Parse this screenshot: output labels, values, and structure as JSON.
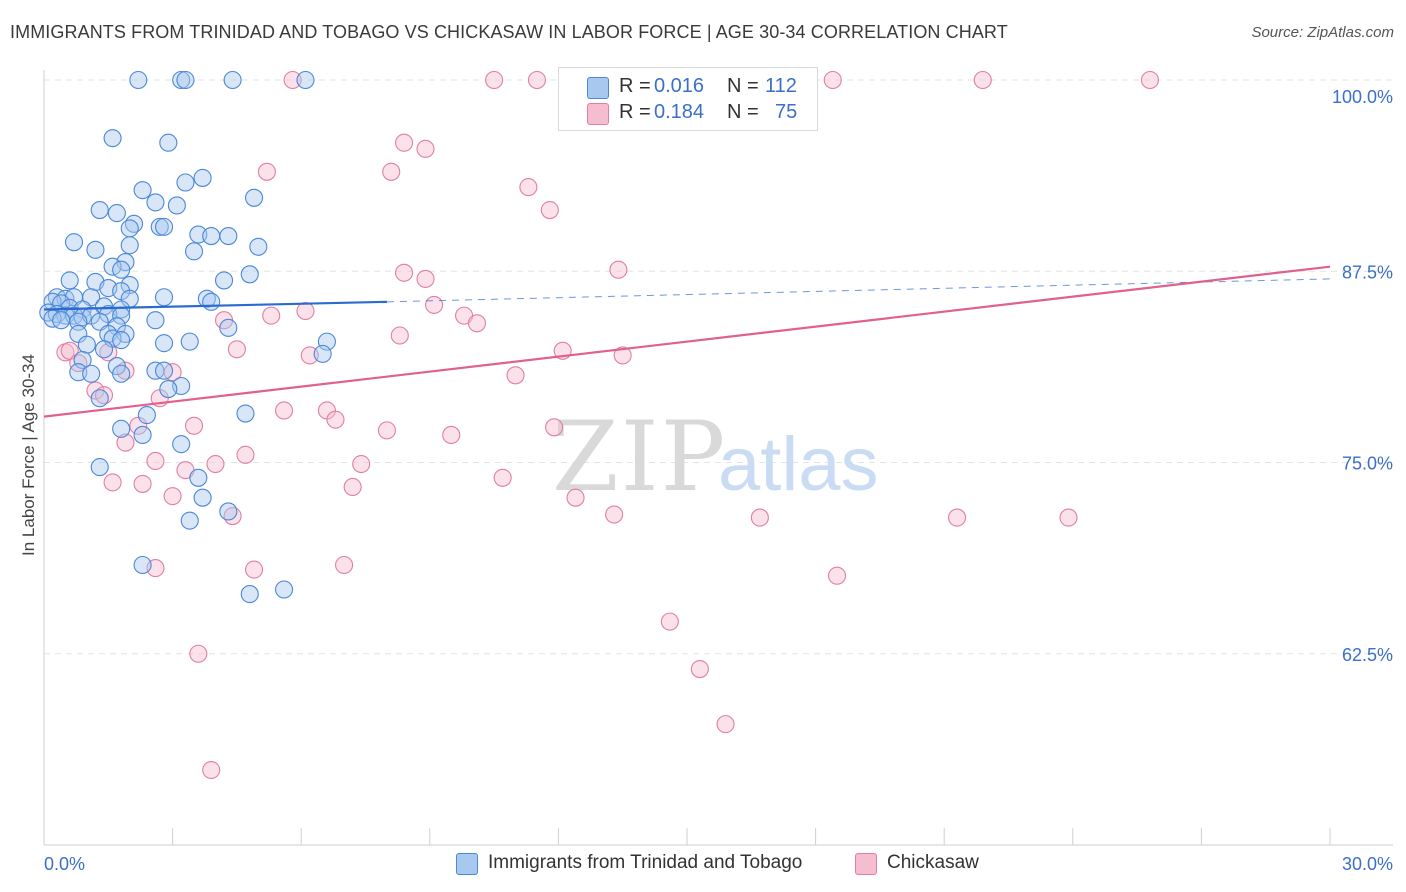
{
  "title": "IMMIGRANTS FROM TRINIDAD AND TOBAGO VS CHICKASAW IN LABOR FORCE | AGE 30-34 CORRELATION CHART",
  "source": "Source: ZipAtlas.com",
  "watermark": {
    "zip": "ZIP",
    "atlas": "atlas"
  },
  "legend_box": {
    "rows": [
      {
        "r_label": "R =",
        "r_value": "0.016",
        "n_label": "N =",
        "n_value": "112"
      },
      {
        "r_label": "R =",
        "r_value": "0.184",
        "n_label": "N =",
        "n_value": "75"
      }
    ]
  },
  "bottom_legend": {
    "series1": "Immigrants from Trinidad and Tobago",
    "series2": "Chickasaw"
  },
  "colors": {
    "blue_fill": "#a9c8f0",
    "blue_stroke": "#4a88d8",
    "blue_line": "#2b6bd0",
    "pink_fill": "#f6bcd0",
    "pink_stroke": "#e07fa3",
    "pink_line": "#e0608e",
    "tick_label": "#3b6fc9"
  },
  "chart_data": {
    "type": "scatter",
    "title": "IMMIGRANTS FROM TRINIDAD AND TOBAGO VS CHICKASAW IN LABOR FORCE | AGE 30-34 CORRELATION CHART",
    "xlabel": "",
    "ylabel": "In Labor Force | Age 30-34",
    "xlim": [
      0,
      30
    ],
    "ylim": [
      50,
      100
    ],
    "x_tick_labels": [
      "0.0%",
      "30.0%"
    ],
    "y_ticks": [
      62.5,
      75.0,
      87.5,
      100.0
    ],
    "y_tick_labels": [
      "62.5%",
      "75.0%",
      "87.5%",
      "100.0%"
    ],
    "series": [
      {
        "name": "Immigrants from Trinidad and Tobago",
        "R": 0.016,
        "N": 112,
        "trend": {
          "x": [
            0,
            8
          ],
          "y": [
            85.0,
            85.5
          ],
          "dashed_to": [
            30,
            87.0
          ]
        },
        "points": [
          [
            2.2,
            100
          ],
          [
            3.2,
            100
          ],
          [
            3.3,
            100
          ],
          [
            4.4,
            100
          ],
          [
            6.1,
            100
          ],
          [
            1.6,
            96.2
          ],
          [
            2.9,
            95.9
          ],
          [
            3.3,
            93.3
          ],
          [
            3.7,
            93.6
          ],
          [
            2.3,
            92.8
          ],
          [
            4.9,
            92.3
          ],
          [
            2.6,
            92.0
          ],
          [
            3.1,
            91.8
          ],
          [
            1.3,
            91.5
          ],
          [
            1.7,
            91.3
          ],
          [
            2.1,
            90.6
          ],
          [
            2.0,
            90.3
          ],
          [
            2.7,
            90.4
          ],
          [
            2.8,
            90.4
          ],
          [
            3.6,
            89.9
          ],
          [
            3.9,
            89.8
          ],
          [
            4.3,
            89.8
          ],
          [
            0.7,
            89.4
          ],
          [
            2.0,
            89.2
          ],
          [
            5.0,
            89.1
          ],
          [
            1.2,
            88.9
          ],
          [
            3.5,
            88.8
          ],
          [
            1.9,
            88.1
          ],
          [
            1.6,
            87.8
          ],
          [
            1.8,
            87.6
          ],
          [
            4.8,
            87.3
          ],
          [
            0.6,
            86.9
          ],
          [
            1.2,
            86.8
          ],
          [
            2.0,
            86.6
          ],
          [
            4.2,
            86.9
          ],
          [
            1.5,
            86.4
          ],
          [
            1.8,
            86.2
          ],
          [
            0.3,
            85.8
          ],
          [
            0.5,
            85.7
          ],
          [
            0.7,
            85.8
          ],
          [
            1.1,
            85.8
          ],
          [
            2.0,
            85.7
          ],
          [
            2.8,
            85.8
          ],
          [
            3.8,
            85.7
          ],
          [
            3.9,
            85.5
          ],
          [
            0.2,
            85.5
          ],
          [
            0.4,
            85.4
          ],
          [
            0.6,
            85.1
          ],
          [
            0.9,
            85.0
          ],
          [
            1.4,
            85.2
          ],
          [
            1.8,
            85.0
          ],
          [
            0.1,
            84.8
          ],
          [
            0.3,
            84.7
          ],
          [
            0.5,
            84.6
          ],
          [
            0.7,
            84.6
          ],
          [
            0.9,
            84.5
          ],
          [
            1.1,
            84.6
          ],
          [
            1.5,
            84.7
          ],
          [
            1.8,
            84.6
          ],
          [
            0.2,
            84.4
          ],
          [
            0.4,
            84.3
          ],
          [
            0.8,
            84.2
          ],
          [
            1.3,
            84.2
          ],
          [
            2.6,
            84.3
          ],
          [
            1.7,
            83.9
          ],
          [
            4.3,
            83.8
          ],
          [
            0.8,
            83.4
          ],
          [
            1.5,
            83.4
          ],
          [
            1.9,
            83.4
          ],
          [
            1.6,
            83.1
          ],
          [
            1.8,
            83.0
          ],
          [
            2.8,
            82.8
          ],
          [
            3.4,
            82.9
          ],
          [
            1.0,
            82.7
          ],
          [
            1.4,
            82.4
          ],
          [
            6.6,
            82.9
          ],
          [
            6.5,
            82.1
          ],
          [
            0.9,
            81.7
          ],
          [
            1.7,
            81.3
          ],
          [
            0.8,
            80.9
          ],
          [
            1.1,
            80.8
          ],
          [
            2.6,
            81.0
          ],
          [
            2.8,
            81.0
          ],
          [
            1.8,
            80.8
          ],
          [
            3.2,
            80.0
          ],
          [
            2.9,
            79.8
          ],
          [
            1.3,
            79.2
          ],
          [
            2.4,
            78.1
          ],
          [
            4.7,
            78.2
          ],
          [
            1.8,
            77.2
          ],
          [
            2.3,
            76.8
          ],
          [
            3.2,
            76.2
          ],
          [
            1.3,
            74.7
          ],
          [
            3.6,
            74.0
          ],
          [
            3.7,
            72.7
          ],
          [
            4.3,
            71.8
          ],
          [
            3.4,
            71.2
          ],
          [
            2.3,
            68.3
          ],
          [
            4.8,
            66.4
          ],
          [
            5.6,
            66.7
          ]
        ]
      },
      {
        "name": "Chickasaw",
        "R": 0.184,
        "N": 75,
        "trend": {
          "x": [
            0,
            30
          ],
          "y": [
            78.0,
            87.8
          ]
        },
        "points": [
          [
            5.8,
            100
          ],
          [
            10.5,
            100
          ],
          [
            11.5,
            100
          ],
          [
            14.3,
            100
          ],
          [
            18.4,
            100
          ],
          [
            21.9,
            100
          ],
          [
            25.8,
            100
          ],
          [
            8.4,
            95.9
          ],
          [
            8.9,
            95.5
          ],
          [
            5.2,
            94.0
          ],
          [
            8.1,
            94.0
          ],
          [
            11.3,
            93.0
          ],
          [
            11.8,
            91.5
          ],
          [
            8.4,
            87.4
          ],
          [
            8.9,
            87.0
          ],
          [
            13.4,
            87.6
          ],
          [
            9.1,
            85.3
          ],
          [
            6.1,
            84.9
          ],
          [
            5.3,
            84.6
          ],
          [
            4.2,
            84.3
          ],
          [
            9.8,
            84.6
          ],
          [
            10.1,
            84.1
          ],
          [
            8.3,
            83.3
          ],
          [
            0.5,
            82.2
          ],
          [
            0.6,
            82.3
          ],
          [
            1.5,
            82.2
          ],
          [
            4.5,
            82.4
          ],
          [
            6.2,
            82.0
          ],
          [
            12.1,
            82.3
          ],
          [
            13.5,
            82.0
          ],
          [
            0.8,
            81.5
          ],
          [
            1.9,
            81.0
          ],
          [
            3.0,
            80.9
          ],
          [
            11.0,
            80.7
          ],
          [
            1.2,
            79.7
          ],
          [
            1.4,
            79.4
          ],
          [
            2.7,
            79.2
          ],
          [
            5.6,
            78.4
          ],
          [
            6.6,
            78.4
          ],
          [
            6.8,
            77.8
          ],
          [
            2.2,
            77.4
          ],
          [
            3.5,
            77.4
          ],
          [
            8.0,
            77.1
          ],
          [
            11.9,
            77.3
          ],
          [
            9.5,
            76.8
          ],
          [
            1.9,
            76.3
          ],
          [
            4.7,
            75.5
          ],
          [
            2.6,
            75.1
          ],
          [
            3.3,
            74.5
          ],
          [
            4.0,
            74.9
          ],
          [
            7.4,
            74.9
          ],
          [
            10.7,
            74.0
          ],
          [
            1.6,
            73.7
          ],
          [
            2.3,
            73.6
          ],
          [
            7.2,
            73.4
          ],
          [
            3.0,
            72.8
          ],
          [
            12.4,
            72.7
          ],
          [
            4.4,
            71.5
          ],
          [
            13.3,
            71.6
          ],
          [
            16.7,
            71.4
          ],
          [
            21.3,
            71.4
          ],
          [
            23.9,
            71.4
          ],
          [
            2.6,
            68.1
          ],
          [
            4.9,
            68.0
          ],
          [
            7.0,
            68.3
          ],
          [
            18.5,
            67.6
          ],
          [
            14.6,
            64.6
          ],
          [
            3.6,
            62.5
          ],
          [
            15.3,
            61.5
          ],
          [
            15.9,
            57.9
          ],
          [
            3.9,
            54.9
          ]
        ]
      }
    ]
  }
}
